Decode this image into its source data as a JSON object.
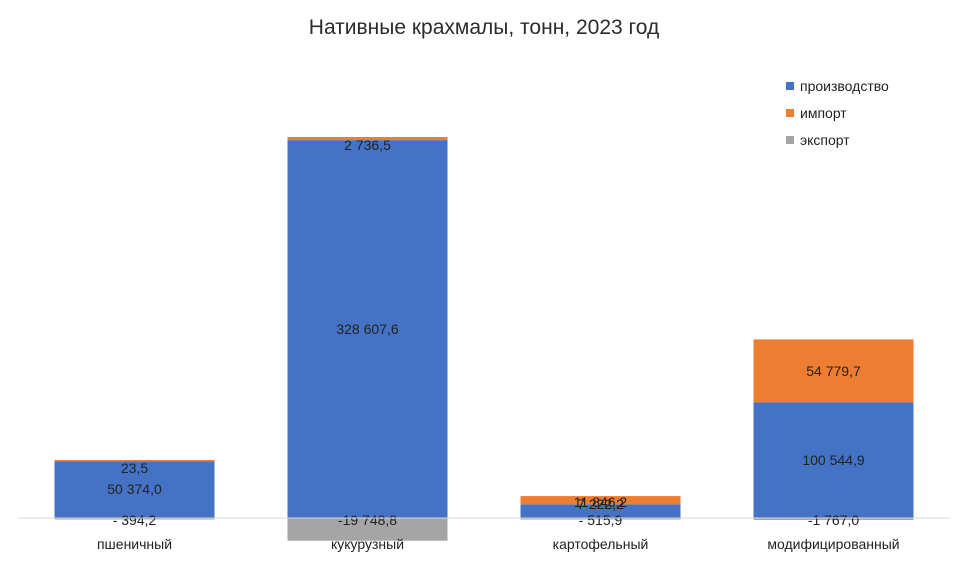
{
  "chart_data": {
    "type": "bar",
    "stacked": true,
    "title": "Нативные крахмалы, тонн, 2023 год",
    "categories": [
      "пшеничный",
      "кукурузный",
      "картофельный",
      "модифицированный"
    ],
    "series": [
      {
        "name": "производство",
        "color": "#4472C4",
        "values": [
          50374.0,
          328607.6,
          11846.2,
          100544.9
        ],
        "labels": [
          "50 374,0",
          "328 607,6",
          "11 846,2",
          "100 544,9"
        ]
      },
      {
        "name": "импорт",
        "color": "#ED7D31",
        "values": [
          23.5,
          2736.5,
          7222.2,
          54779.7
        ],
        "labels": [
          "23,5",
          "2 736,5",
          "7 222,2",
          "54 779,7"
        ]
      },
      {
        "name": "экспорт",
        "color": "#A5A5A5",
        "values": [
          -394.2,
          -19748.8,
          -515.9,
          -1767.0
        ],
        "labels": [
          "- 394,2",
          "-19 748,8",
          "- 515,9",
          "-1 767,0"
        ]
      }
    ],
    "ylim": [
      -23000,
      337000
    ],
    "grid": false,
    "legend_position": "top-right",
    "xlabel": "",
    "ylabel": ""
  }
}
